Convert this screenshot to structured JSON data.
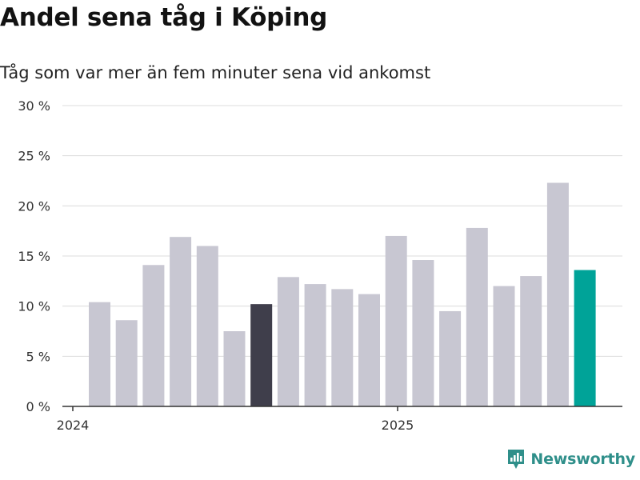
{
  "chart_data": {
    "type": "bar",
    "title": "Andel sena tåg i Köping",
    "subtitle": "Tåg som var mer än fem minuter sena vid ankomst",
    "xlabel": "",
    "ylabel": "",
    "x_tick_labels": [
      "2024",
      "2025"
    ],
    "y_tick_labels": [
      "0 %",
      "5 %",
      "10 %",
      "15 %",
      "20 %",
      "25 %",
      "30 %"
    ],
    "ylim": [
      0,
      30
    ],
    "grid": true,
    "values": [
      10.4,
      8.6,
      14.1,
      16.9,
      16.0,
      7.5,
      10.2,
      12.9,
      12.2,
      11.7,
      11.2,
      17.0,
      14.6,
      9.5,
      17.8,
      12.0,
      13.0,
      22.3,
      13.6
    ],
    "highlight_indices": [
      6,
      18
    ],
    "colors": {
      "default_bar": "#c8c7d2",
      "dark_highlight": "#3f3e4b",
      "latest_highlight": "#00a398",
      "grid": "#dcdcdc",
      "axis": "#333333"
    }
  },
  "brand": {
    "name": "Newsworthy",
    "icon": "newsworthy-logo-icon",
    "color": "#2f8f8a"
  }
}
